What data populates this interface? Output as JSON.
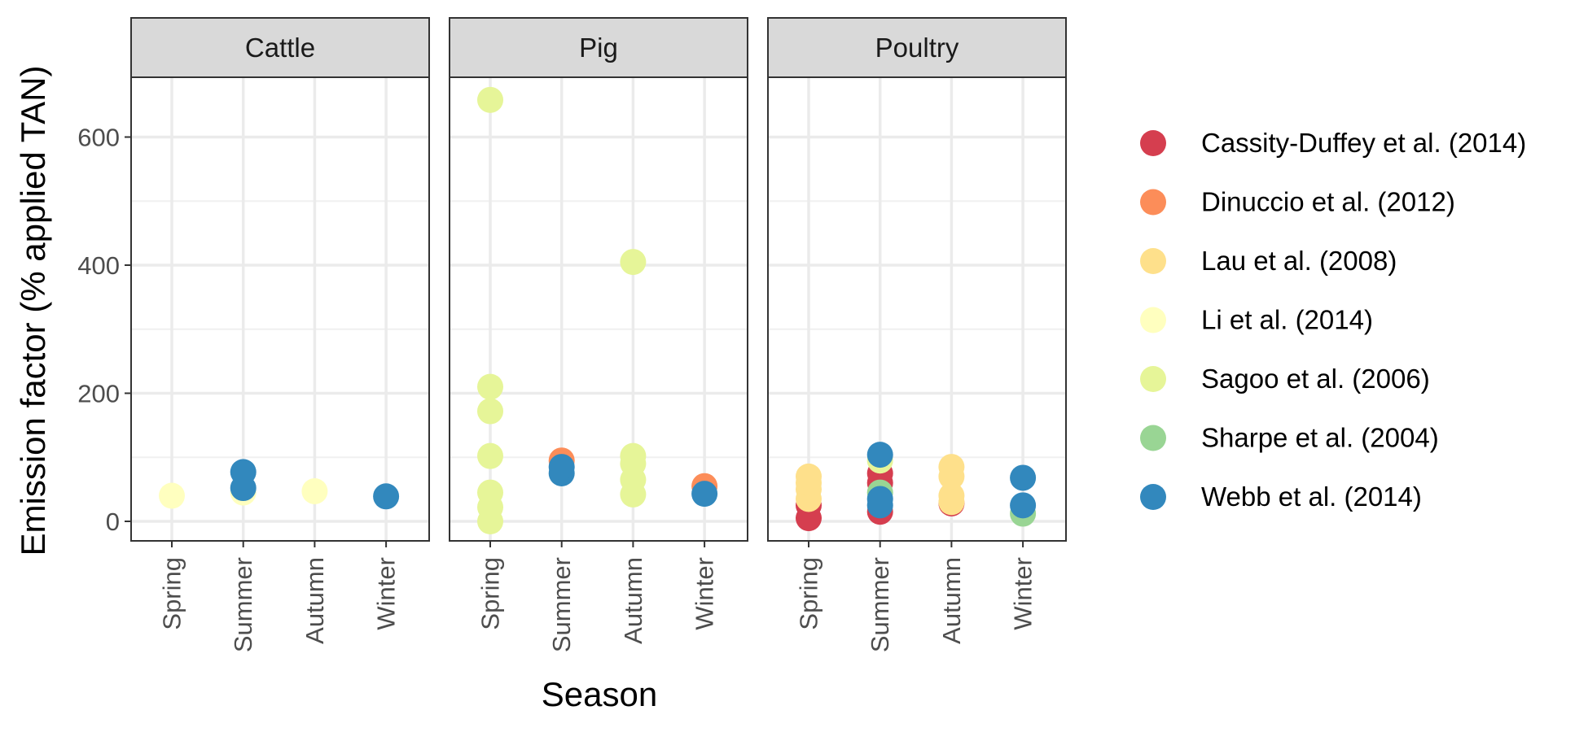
{
  "chart_data": {
    "type": "scatter",
    "facet_by": "livestock",
    "facets": [
      "Cattle",
      "Pig",
      "Poultry"
    ],
    "categories": [
      "Spring",
      "Summer",
      "Autumn",
      "Winter"
    ],
    "xlabel": "Season",
    "ylabel": "Emission factor (% applied TAN)",
    "ylim": [
      -30,
      760
    ],
    "yticks": [
      0,
      200,
      400,
      600
    ],
    "grid": true,
    "legend_position": "right",
    "series": [
      {
        "name": "Cassity-Duffey et al. (2014)",
        "color": "#d53e4f",
        "points": [
          {
            "facet": "Poultry",
            "x": "Spring",
            "y": 5
          },
          {
            "facet": "Poultry",
            "x": "Spring",
            "y": 25
          },
          {
            "facet": "Poultry",
            "x": "Summer",
            "y": 15
          },
          {
            "facet": "Poultry",
            "x": "Summer",
            "y": 60
          },
          {
            "facet": "Poultry",
            "x": "Summer",
            "y": 75
          },
          {
            "facet": "Poultry",
            "x": "Autumn",
            "y": 28
          }
        ]
      },
      {
        "name": "Dinuccio et al. (2012)",
        "color": "#fc8d59",
        "points": [
          {
            "facet": "Pig",
            "x": "Summer",
            "y": 95
          },
          {
            "facet": "Pig",
            "x": "Winter",
            "y": 55
          }
        ]
      },
      {
        "name": "Lau et al. (2008)",
        "color": "#fee08b",
        "points": [
          {
            "facet": "Poultry",
            "x": "Spring",
            "y": 35
          },
          {
            "facet": "Poultry",
            "x": "Spring",
            "y": 50
          },
          {
            "facet": "Poultry",
            "x": "Spring",
            "y": 60
          },
          {
            "facet": "Poultry",
            "x": "Spring",
            "y": 70
          },
          {
            "facet": "Poultry",
            "x": "Autumn",
            "y": 30
          },
          {
            "facet": "Poultry",
            "x": "Autumn",
            "y": 40
          },
          {
            "facet": "Poultry",
            "x": "Autumn",
            "y": 70
          },
          {
            "facet": "Poultry",
            "x": "Autumn",
            "y": 85
          }
        ]
      },
      {
        "name": "Li et al. (2014)",
        "color": "#ffffbf",
        "points": [
          {
            "facet": "Cattle",
            "x": "Spring",
            "y": 40
          },
          {
            "facet": "Cattle",
            "x": "Summer",
            "y": 45
          },
          {
            "facet": "Cattle",
            "x": "Autumn",
            "y": 47
          }
        ]
      },
      {
        "name": "Sagoo et al. (2006)",
        "color": "#e6f598",
        "points": [
          {
            "facet": "Pig",
            "x": "Spring",
            "y": 0
          },
          {
            "facet": "Pig",
            "x": "Spring",
            "y": 22
          },
          {
            "facet": "Pig",
            "x": "Spring",
            "y": 45
          },
          {
            "facet": "Pig",
            "x": "Spring",
            "y": 102
          },
          {
            "facet": "Pig",
            "x": "Spring",
            "y": 172
          },
          {
            "facet": "Pig",
            "x": "Spring",
            "y": 210
          },
          {
            "facet": "Pig",
            "x": "Spring",
            "y": 658
          },
          {
            "facet": "Pig",
            "x": "Autumn",
            "y": 42
          },
          {
            "facet": "Pig",
            "x": "Autumn",
            "y": 65
          },
          {
            "facet": "Pig",
            "x": "Autumn",
            "y": 90
          },
          {
            "facet": "Pig",
            "x": "Autumn",
            "y": 102
          },
          {
            "facet": "Pig",
            "x": "Autumn",
            "y": 405
          },
          {
            "facet": "Poultry",
            "x": "Summer",
            "y": 95
          }
        ]
      },
      {
        "name": "Sharpe et al. (2004)",
        "color": "#99d594",
        "points": [
          {
            "facet": "Poultry",
            "x": "Summer",
            "y": 45
          },
          {
            "facet": "Poultry",
            "x": "Winter",
            "y": 12
          }
        ]
      },
      {
        "name": "Webb et al. (2014)",
        "color": "#3288bd",
        "points": [
          {
            "facet": "Cattle",
            "x": "Summer",
            "y": 52
          },
          {
            "facet": "Cattle",
            "x": "Summer",
            "y": 77
          },
          {
            "facet": "Cattle",
            "x": "Winter",
            "y": 39
          },
          {
            "facet": "Pig",
            "x": "Summer",
            "y": 75
          },
          {
            "facet": "Pig",
            "x": "Summer",
            "y": 85
          },
          {
            "facet": "Pig",
            "x": "Winter",
            "y": 43
          },
          {
            "facet": "Poultry",
            "x": "Summer",
            "y": 25
          },
          {
            "facet": "Poultry",
            "x": "Summer",
            "y": 35
          },
          {
            "facet": "Poultry",
            "x": "Summer",
            "y": 104
          },
          {
            "facet": "Poultry",
            "x": "Winter",
            "y": 25
          },
          {
            "facet": "Poultry",
            "x": "Winter",
            "y": 68
          }
        ]
      }
    ]
  }
}
